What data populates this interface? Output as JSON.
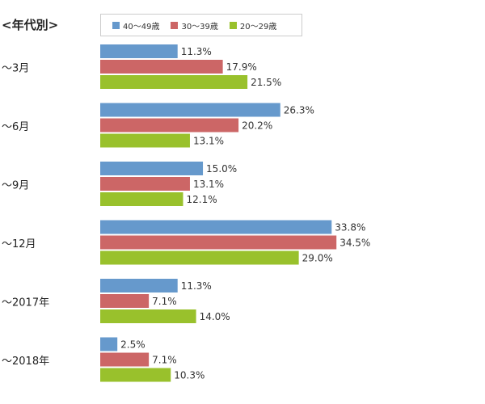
{
  "section_title": "<年代別>",
  "chart_data": {
    "type": "bar",
    "orientation": "horizontal",
    "title": "",
    "xlabel": "",
    "ylabel": "",
    "value_suffix": "%",
    "xlim": [
      0,
      40
    ],
    "grid": false,
    "legend_position": "top",
    "categories": [
      "～3月",
      "～6月",
      "～9月",
      "～12月",
      "～2017年",
      "～2018年"
    ],
    "series": [
      {
        "name": "40～49歳",
        "color": "#6699cc",
        "values": [
          11.3,
          26.3,
          15.0,
          33.8,
          11.3,
          2.5
        ]
      },
      {
        "name": "30～39歳",
        "color": "#cc6666",
        "values": [
          17.9,
          20.2,
          13.1,
          34.5,
          7.1,
          7.1
        ]
      },
      {
        "name": "20～29歳",
        "color": "#99c12c",
        "values": [
          21.5,
          13.1,
          12.1,
          29.0,
          14.0,
          10.3
        ]
      }
    ]
  }
}
